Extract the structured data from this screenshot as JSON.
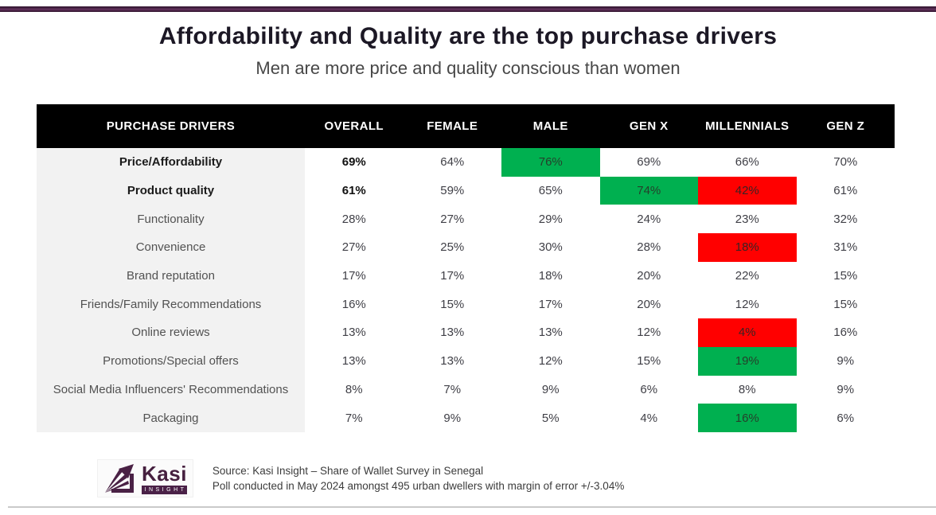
{
  "page": {
    "title": "Affordability and Quality are the top purchase drivers",
    "subtitle": "Men are more price and quality conscious than women"
  },
  "table": {
    "columns": [
      "PURCHASE DRIVERS",
      "OVERALL",
      "FEMALE",
      "MALE",
      "GEN X",
      "MILLENNIALS",
      "GEN Z"
    ],
    "rows": [
      {
        "label": "Price/Affordability",
        "bold": true,
        "values": [
          "69%",
          "64%",
          "76%",
          "69%",
          "66%",
          "70%"
        ],
        "highlights": [
          null,
          null,
          "green",
          null,
          null,
          null
        ]
      },
      {
        "label": "Product quality",
        "bold": true,
        "values": [
          "61%",
          "59%",
          "65%",
          "74%",
          "42%",
          "61%"
        ],
        "highlights": [
          null,
          null,
          null,
          "green",
          "red",
          null
        ]
      },
      {
        "label": "Functionality",
        "bold": false,
        "values": [
          "28%",
          "27%",
          "29%",
          "24%",
          "23%",
          "32%"
        ],
        "highlights": [
          null,
          null,
          null,
          null,
          null,
          null
        ]
      },
      {
        "label": "Convenience",
        "bold": false,
        "values": [
          "27%",
          "25%",
          "30%",
          "28%",
          "18%",
          "31%"
        ],
        "highlights": [
          null,
          null,
          null,
          null,
          "red",
          null
        ]
      },
      {
        "label": "Brand reputation",
        "bold": false,
        "values": [
          "17%",
          "17%",
          "18%",
          "20%",
          "22%",
          "15%"
        ],
        "highlights": [
          null,
          null,
          null,
          null,
          null,
          null
        ]
      },
      {
        "label": "Friends/Family Recommendations",
        "bold": false,
        "values": [
          "16%",
          "15%",
          "17%",
          "20%",
          "12%",
          "15%"
        ],
        "highlights": [
          null,
          null,
          null,
          null,
          null,
          null
        ]
      },
      {
        "label": "Online reviews",
        "bold": false,
        "values": [
          "13%",
          "13%",
          "13%",
          "12%",
          "4%",
          "16%"
        ],
        "highlights": [
          null,
          null,
          null,
          null,
          "red",
          null
        ]
      },
      {
        "label": "Promotions/Special offers",
        "bold": false,
        "values": [
          "13%",
          "13%",
          "12%",
          "15%",
          "19%",
          "9%"
        ],
        "highlights": [
          null,
          null,
          null,
          null,
          "green",
          null
        ]
      },
      {
        "label": "Social Media Influencers' Recommendations",
        "bold": false,
        "values": [
          "8%",
          "7%",
          "9%",
          "6%",
          "8%",
          "9%"
        ],
        "highlights": [
          null,
          null,
          null,
          null,
          null,
          null
        ]
      },
      {
        "label": "Packaging",
        "bold": false,
        "values": [
          "7%",
          "9%",
          "5%",
          "4%",
          "16%",
          "6%"
        ],
        "highlights": [
          null,
          null,
          null,
          null,
          "green",
          null
        ]
      }
    ]
  },
  "footer": {
    "logo_word": "Kasi",
    "logo_sub": "INSIGHT",
    "source_line1": "Source: Kasi Insight – Share of Wallet Survey in Senegal",
    "source_line2": "Poll conducted in May 2024 amongst 495 urban dwellers with margin of error +/-3.04%"
  },
  "colors": {
    "accent_purple": "#4a2147",
    "header_bg": "#000000",
    "header_text": "#ffffff",
    "label_column_bg": "#f2f2f2",
    "highlight_green": "#00b050",
    "highlight_red": "#ff0000",
    "bottom_rule": "#cacaca"
  },
  "chart_data": {
    "type": "table",
    "title": "Affordability and Quality are the top purchase drivers",
    "subtitle": "Men are more price and quality conscious than women",
    "categories": [
      "Price/Affordability",
      "Product quality",
      "Functionality",
      "Convenience",
      "Brand reputation",
      "Friends/Family Recommendations",
      "Online reviews",
      "Promotions/Special offers",
      "Social Media Influencers' Recommendations",
      "Packaging"
    ],
    "series": [
      {
        "name": "OVERALL",
        "values": [
          69,
          61,
          28,
          27,
          17,
          16,
          13,
          13,
          8,
          7
        ]
      },
      {
        "name": "FEMALE",
        "values": [
          64,
          59,
          27,
          25,
          17,
          15,
          13,
          13,
          7,
          9
        ]
      },
      {
        "name": "MALE",
        "values": [
          76,
          65,
          29,
          30,
          18,
          17,
          13,
          12,
          9,
          5
        ]
      },
      {
        "name": "GEN X",
        "values": [
          69,
          74,
          24,
          28,
          20,
          20,
          12,
          15,
          6,
          4
        ]
      },
      {
        "name": "MILLENNIALS",
        "values": [
          66,
          42,
          23,
          18,
          22,
          12,
          4,
          19,
          8,
          16
        ]
      },
      {
        "name": "GEN Z",
        "values": [
          70,
          61,
          32,
          31,
          15,
          15,
          16,
          9,
          9,
          6
        ]
      }
    ],
    "unit": "%",
    "highlights": [
      {
        "row": "Price/Affordability",
        "column": "MALE",
        "color": "green"
      },
      {
        "row": "Product quality",
        "column": "GEN X",
        "color": "green"
      },
      {
        "row": "Product quality",
        "column": "MILLENNIALS",
        "color": "red"
      },
      {
        "row": "Convenience",
        "column": "MILLENNIALS",
        "color": "red"
      },
      {
        "row": "Online reviews",
        "column": "MILLENNIALS",
        "color": "red"
      },
      {
        "row": "Promotions/Special offers",
        "column": "MILLENNIALS",
        "color": "green"
      },
      {
        "row": "Packaging",
        "column": "MILLENNIALS",
        "color": "green"
      }
    ],
    "source": "Source: Kasi Insight – Share of Wallet Survey in Senegal",
    "note": "Poll conducted in May 2024 amongst 495 urban dwellers with margin of error +/-3.04%"
  }
}
